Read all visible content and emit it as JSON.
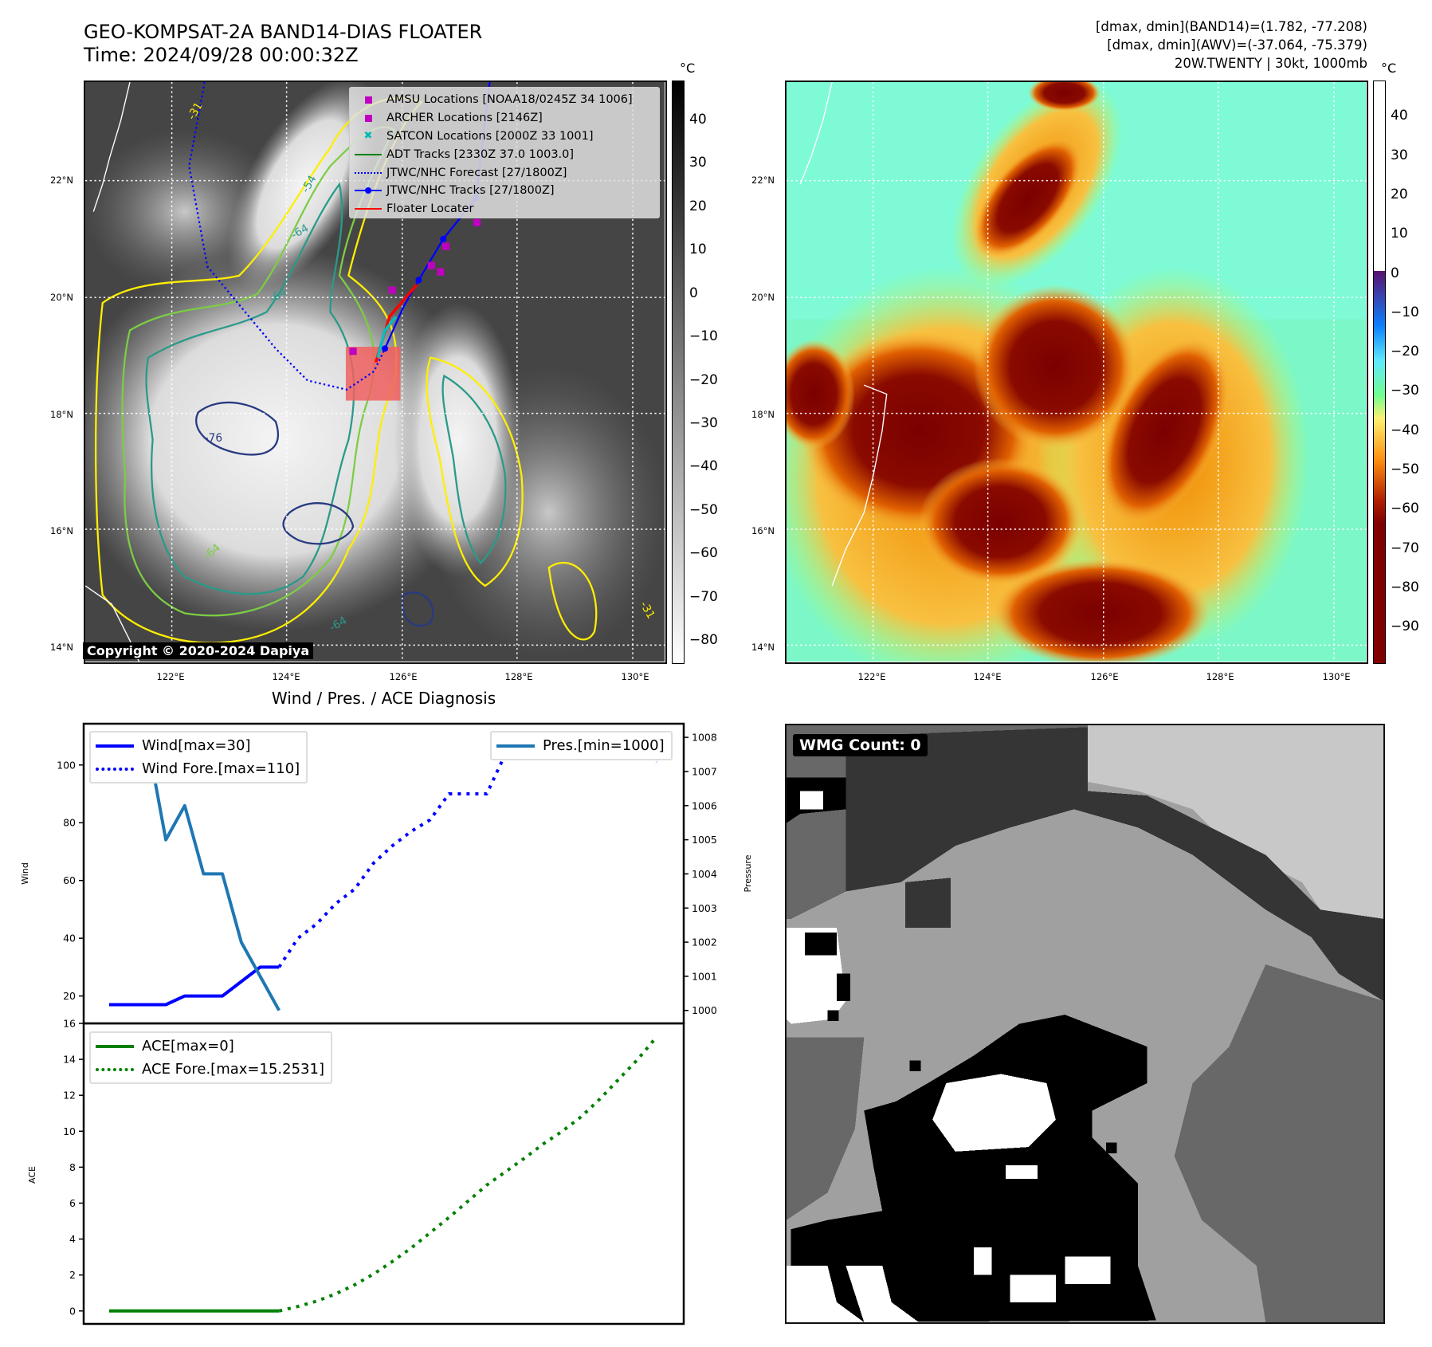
{
  "title": {
    "line1": "GEO-KOMPSAT-2A BAND14-DIAS FLOATER",
    "line2": "Time: 2024/09/28 00:00:32Z"
  },
  "header_right": {
    "line1": "[dmax, dmin](BAND14)=(1.782, -77.208)",
    "line2": "[dmax, dmin](AWV)=(-37.064, -75.379)",
    "line3": "20W.TWENTY | 30kt, 1000mb"
  },
  "map": {
    "lat_labels": [
      "22°N",
      "20°N",
      "18°N",
      "16°N",
      "14°N"
    ],
    "lon_labels": [
      "122°E",
      "124°E",
      "126°E",
      "128°E",
      "130°E"
    ],
    "contour_labels": [
      "-76",
      "-64",
      "-64",
      "-64",
      "-64",
      "-54",
      "-31",
      "-31"
    ],
    "copyright": "Copyright © 2020-2024 Dapiya",
    "legend": [
      {
        "label": "AMSU Locations [NOAA18/0245Z 34 1006]",
        "icon": "magenta-square",
        "color": "#c000c0"
      },
      {
        "label": "ARCHER Locations [2146Z]",
        "icon": "magenta-square",
        "color": "#c000c0"
      },
      {
        "label": "SATCON Locations [2000Z 33 1001]",
        "icon": "cyan-x",
        "color": "#00b8b8"
      },
      {
        "label": "ADT Tracks [2330Z 37.0 1003.0]",
        "icon": "green-line",
        "color": "#008000"
      },
      {
        "label": "JTWC/NHC Forecast [27/1800Z]",
        "icon": "blue-dotted-line",
        "color": "#0000ff"
      },
      {
        "label": "JTWC/NHC Tracks [27/1800Z]",
        "icon": "blue-line-dot",
        "color": "#0000ff"
      },
      {
        "label": "Floater Locater",
        "icon": "red-line",
        "color": "#ff0000"
      }
    ]
  },
  "colorbar_left": {
    "unit": "°C",
    "ticks": [
      "40",
      "30",
      "20",
      "10",
      "0",
      "−10",
      "−20",
      "−30",
      "−40",
      "−50",
      "−60",
      "−70",
      "−80"
    ]
  },
  "colorbar_right": {
    "unit": "°C",
    "ticks": [
      "40",
      "30",
      "20",
      "10",
      "0",
      "−10",
      "−20",
      "−30",
      "−40",
      "−50",
      "−60",
      "−70",
      "−80",
      "−90"
    ]
  },
  "wmg": {
    "label": "WMG Count: 0"
  },
  "chart_data": [
    {
      "type": "line",
      "title": "Wind / Pres. / ACE Diagnosis",
      "ylabel": "Wind",
      "ylabel_right": "Pressure",
      "x": [
        0,
        1,
        2,
        3,
        4,
        5,
        6,
        7,
        8,
        9,
        10,
        11,
        12,
        13,
        14,
        15,
        16,
        17,
        18,
        19,
        20,
        21,
        22,
        23,
        24,
        25,
        26,
        27,
        28,
        29
      ],
      "ylim": [
        10.5,
        114.3
      ],
      "ylim_right": [
        999.62,
        1008.4
      ],
      "yticks": [
        "20",
        "40",
        "60",
        "80",
        "100"
      ],
      "yticks_right": [
        "1000",
        "1001",
        "1002",
        "1003",
        "1004",
        "1005",
        "1006",
        "1007",
        "1008"
      ],
      "series": [
        {
          "name": "Wind[max=30]",
          "axis": "left",
          "style": "solid",
          "color": "#0000ff",
          "x": [
            0,
            1,
            2,
            3,
            4,
            5,
            6,
            7,
            8,
            9
          ],
          "values": [
            17,
            17,
            17,
            17,
            20,
            20,
            20,
            25,
            30,
            30
          ]
        },
        {
          "name": "Wind Fore.[max=110]",
          "axis": "left",
          "style": "dotted",
          "color": "#0000ff",
          "x": [
            9,
            10,
            11,
            12,
            13,
            14,
            15,
            16,
            17,
            18,
            19,
            20,
            21,
            22,
            23,
            24,
            25,
            26,
            27,
            28,
            29
          ],
          "values": [
            30,
            40,
            45,
            52,
            57,
            66,
            72,
            77,
            81,
            90,
            90,
            90,
            104,
            108,
            110,
            110,
            110,
            110,
            110,
            106,
            101
          ]
        },
        {
          "name": "Pres.[min=1000]",
          "axis": "right",
          "style": "solid",
          "color": "#1f77b4",
          "x": [
            0,
            1,
            2,
            3,
            4,
            5,
            6,
            7,
            8,
            9
          ],
          "values": [
            1008,
            1008,
            1008,
            1005,
            1006,
            1004,
            1004,
            1002,
            1001,
            1000
          ]
        }
      ],
      "legend_left": "upper-left",
      "legend_right": "upper-right"
    },
    {
      "type": "line",
      "ylabel": "ACE",
      "x": [
        0,
        1,
        2,
        3,
        4,
        5,
        6,
        7,
        8,
        9,
        10,
        11,
        12,
        13,
        14,
        15,
        16,
        17,
        18,
        19,
        20,
        21,
        22,
        23,
        24,
        25,
        26,
        27,
        28,
        29
      ],
      "ylim": [
        -0.72,
        16
      ],
      "yticks": [
        "0",
        "2",
        "4",
        "6",
        "8",
        "10",
        "12",
        "14",
        "16"
      ],
      "series": [
        {
          "name": "ACE[max=0]",
          "style": "solid",
          "color": "#008000",
          "x": [
            0,
            1,
            2,
            3,
            4,
            5,
            6,
            7,
            8,
            9
          ],
          "values": [
            0,
            0,
            0,
            0,
            0,
            0,
            0,
            0,
            0,
            0
          ]
        },
        {
          "name": "ACE Fore.[max=15.2531]",
          "style": "dotted",
          "color": "#008000",
          "x": [
            9,
            10,
            11,
            12,
            13,
            14,
            15,
            16,
            17,
            18,
            19,
            20,
            21,
            22,
            23,
            24,
            25,
            26,
            27,
            28,
            29
          ],
          "values": [
            0,
            0.25,
            0.55,
            0.95,
            1.45,
            2.05,
            2.75,
            3.5,
            4.35,
            5.2,
            6.1,
            7.0,
            7.75,
            8.5,
            9.3,
            10.0,
            10.8,
            11.8,
            12.9,
            14.0,
            15.25
          ]
        }
      ],
      "legend": "upper-left"
    }
  ]
}
